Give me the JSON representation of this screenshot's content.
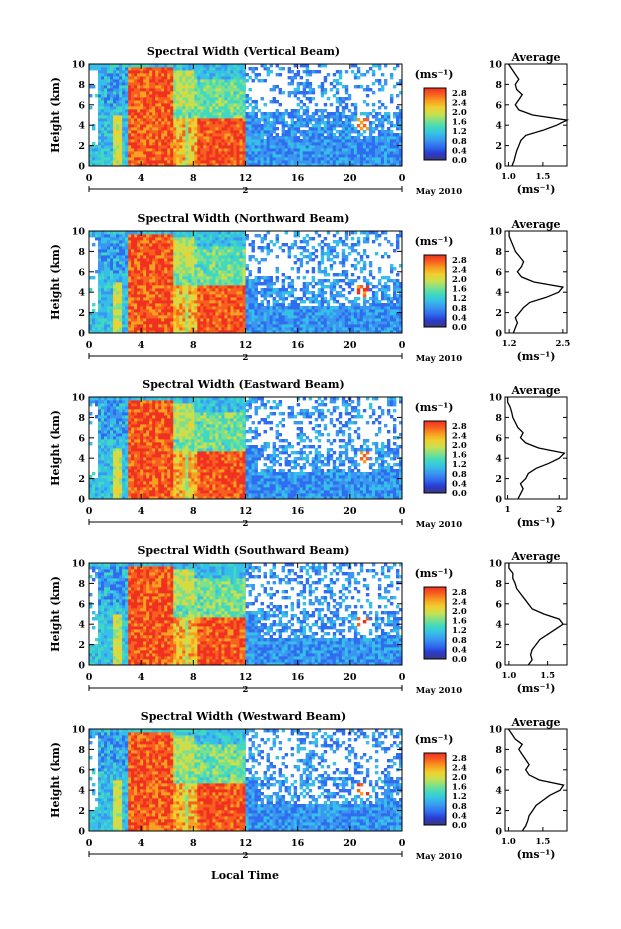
{
  "figure": {
    "x_axis_label": "Local Time",
    "date_label": "May 2010",
    "day_label": "2",
    "colorbar_unit": "(ms⁻¹)",
    "avg_title": "Average",
    "avg_xlabel": "(ms⁻¹)",
    "ylabel": "Height (km)"
  },
  "colors": {
    "colormap": [
      "#3a3a78",
      "#2a3ad0",
      "#2f6cf0",
      "#3a96f0",
      "#36bfe8",
      "#40d8c0",
      "#7ee08a",
      "#c8e050",
      "#f0d030",
      "#f8a020",
      "#f86020",
      "#f03020"
    ]
  },
  "chart_data": [
    {
      "type": "heatmap",
      "title": "Spectral Width (Vertical Beam)",
      "x_ticks": [
        "0",
        "4",
        "8",
        "12",
        "16",
        "20",
        "0"
      ],
      "y_ticks": [
        "0",
        "2",
        "4",
        "6",
        "8",
        "10"
      ],
      "xlim": [
        0,
        24
      ],
      "ylim": [
        0,
        10
      ],
      "colorbar_ticks": [
        "0.0",
        "0.4",
        "0.8",
        "1.2",
        "1.6",
        "2.0",
        "2.4",
        "2.8"
      ],
      "colorbar_range": [
        0,
        3.0
      ],
      "average": {
        "x_ticks": [
          "1.0",
          "1.5"
        ],
        "xlim": [
          0.95,
          1.85
        ],
        "heights": [
          0,
          0.5,
          1,
          1.5,
          2,
          2.5,
          3,
          3.5,
          4,
          4.5,
          5,
          5.5,
          6,
          6.5,
          7,
          7.5,
          8,
          8.5,
          9,
          9.5,
          10
        ],
        "values": [
          1.05,
          1.08,
          1.1,
          1.12,
          1.15,
          1.18,
          1.25,
          1.5,
          1.7,
          1.85,
          1.35,
          1.15,
          1.1,
          1.15,
          1.2,
          1.12,
          1.1,
          1.15,
          1.1,
          1.05,
          1.0
        ]
      }
    },
    {
      "type": "heatmap",
      "title": "Spectral Width (Northward Beam)",
      "x_ticks": [
        "0",
        "4",
        "8",
        "12",
        "16",
        "20",
        "0"
      ],
      "y_ticks": [
        "0",
        "2",
        "4",
        "6",
        "8",
        "10"
      ],
      "xlim": [
        0,
        24
      ],
      "ylim": [
        0,
        10
      ],
      "colorbar_ticks": [
        "0.0",
        "0.4",
        "0.8",
        "1.2",
        "1.6",
        "2.0",
        "2.4",
        "2.8"
      ],
      "colorbar_range": [
        0,
        3.0
      ],
      "average": {
        "x_ticks": [
          "1.2",
          "2.5"
        ],
        "xlim": [
          1.1,
          2.6
        ],
        "heights": [
          0,
          0.5,
          1,
          1.5,
          2,
          2.5,
          3,
          3.5,
          4,
          4.5,
          5,
          5.5,
          6,
          6.5,
          7,
          7.5,
          8,
          8.5,
          9,
          9.5,
          10
        ],
        "values": [
          1.3,
          1.35,
          1.4,
          1.35,
          1.45,
          1.55,
          1.7,
          2.1,
          2.4,
          2.5,
          1.8,
          1.5,
          1.4,
          1.5,
          1.55,
          1.45,
          1.35,
          1.3,
          1.25,
          1.2,
          1.2
        ]
      }
    },
    {
      "type": "heatmap",
      "title": "Spectral Width (Eastward Beam)",
      "x_ticks": [
        "0",
        "4",
        "8",
        "12",
        "16",
        "20",
        "0"
      ],
      "y_ticks": [
        "0",
        "2",
        "4",
        "6",
        "8",
        "10"
      ],
      "xlim": [
        0,
        24
      ],
      "ylim": [
        0,
        10
      ],
      "colorbar_ticks": [
        "0.0",
        "0.4",
        "0.8",
        "1.2",
        "1.6",
        "2.0",
        "2.4",
        "2.8"
      ],
      "colorbar_range": [
        0,
        3.0
      ],
      "average": {
        "x_ticks": [
          "1",
          "2"
        ],
        "xlim": [
          0.95,
          2.15
        ],
        "heights": [
          0,
          0.5,
          1,
          1.5,
          2,
          2.5,
          3,
          3.5,
          4,
          4.5,
          5,
          5.5,
          6,
          6.5,
          7,
          7.5,
          8,
          8.5,
          9,
          9.5,
          10
        ],
        "values": [
          1.2,
          1.25,
          1.3,
          1.25,
          1.35,
          1.4,
          1.55,
          1.8,
          2.0,
          2.1,
          1.6,
          1.35,
          1.25,
          1.3,
          1.2,
          1.15,
          1.1,
          1.08,
          1.05,
          1.0,
          1.0
        ]
      }
    },
    {
      "type": "heatmap",
      "title": "Spectral Width (Southward Beam)",
      "x_ticks": [
        "0",
        "4",
        "8",
        "12",
        "16",
        "20",
        "0"
      ],
      "y_ticks": [
        "0",
        "2",
        "4",
        "6",
        "8",
        "10"
      ],
      "xlim": [
        0,
        24
      ],
      "ylim": [
        0,
        10
      ],
      "colorbar_ticks": [
        "0.0",
        "0.4",
        "0.8",
        "1.2",
        "1.6",
        "2.0",
        "2.4",
        "2.8"
      ],
      "colorbar_range": [
        0,
        3.0
      ],
      "average": {
        "x_ticks": [
          "1.0",
          "1.5"
        ],
        "xlim": [
          0.95,
          1.75
        ],
        "heights": [
          0,
          0.5,
          1,
          1.5,
          2,
          2.5,
          3,
          3.5,
          4,
          4.5,
          5,
          5.5,
          6,
          6.5,
          7,
          7.5,
          8,
          8.5,
          9,
          9.5,
          10
        ],
        "values": [
          1.25,
          1.3,
          1.28,
          1.3,
          1.35,
          1.4,
          1.5,
          1.6,
          1.7,
          1.65,
          1.45,
          1.3,
          1.25,
          1.2,
          1.15,
          1.1,
          1.08,
          1.05,
          1.05,
          1.0,
          1.0
        ]
      }
    },
    {
      "type": "heatmap",
      "title": "Spectral Width (Westward Beam)",
      "x_ticks": [
        "0",
        "4",
        "8",
        "12",
        "16",
        "20",
        "0"
      ],
      "y_ticks": [
        "0",
        "2",
        "4",
        "6",
        "8",
        "10"
      ],
      "xlim": [
        0,
        24
      ],
      "ylim": [
        0,
        10
      ],
      "colorbar_ticks": [
        "0.0",
        "0.4",
        "0.8",
        "1.2",
        "1.6",
        "2.0",
        "2.4",
        "2.8"
      ],
      "colorbar_range": [
        0,
        3.0
      ],
      "average": {
        "x_ticks": [
          "1.0",
          "1.5"
        ],
        "xlim": [
          0.95,
          1.85
        ],
        "heights": [
          0,
          0.5,
          1,
          1.5,
          2,
          2.5,
          3,
          3.5,
          4,
          4.5,
          5,
          5.5,
          6,
          6.5,
          7,
          7.5,
          8,
          8.5,
          9,
          9.5,
          10
        ],
        "values": [
          1.2,
          1.25,
          1.28,
          1.3,
          1.35,
          1.4,
          1.5,
          1.6,
          1.75,
          1.8,
          1.45,
          1.3,
          1.25,
          1.3,
          1.25,
          1.2,
          1.15,
          1.2,
          1.1,
          1.05,
          1.0
        ]
      }
    }
  ]
}
